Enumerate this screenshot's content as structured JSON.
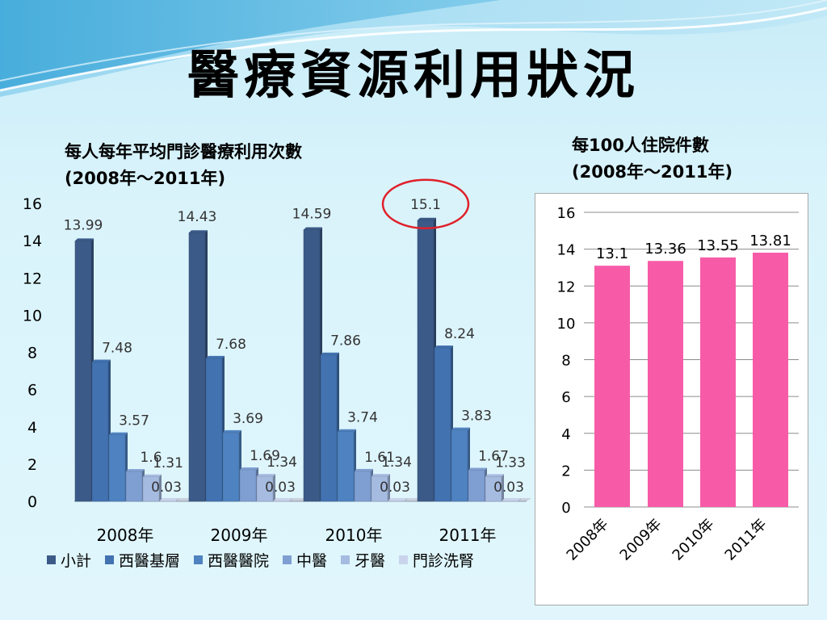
{
  "title": "醫療資源利用狀況",
  "left_chart": {
    "subtitle_line1": "每人每年平均門診醫療利用次數",
    "subtitle_line2": "(2008年～2011年)"
  },
  "right_chart": {
    "subtitle_line1": "每100人住院件數",
    "subtitle_line2": "(2008年～2011年)"
  },
  "colors": {
    "series": [
      "#3c5a88",
      "#4272b0",
      "#4f82c0",
      "#7f9fd2",
      "#a6bbe0",
      "#c9d4ec"
    ],
    "highlight_circle": "#e0202a",
    "bar_pink": "#f75ba8"
  },
  "chart_data": [
    {
      "type": "bar",
      "categories": [
        "2008年",
        "2009年",
        "2010年",
        "2011年"
      ],
      "series": [
        {
          "name": "小計",
          "values": [
            13.99,
            14.43,
            14.59,
            15.1
          ]
        },
        {
          "name": "西醫基層",
          "values": [
            7.48,
            7.68,
            7.86,
            8.24
          ]
        },
        {
          "name": "西醫醫院",
          "values": [
            3.57,
            3.69,
            3.74,
            3.83
          ]
        },
        {
          "name": "中醫",
          "values": [
            1.6,
            1.69,
            1.61,
            1.67
          ]
        },
        {
          "name": "牙醫",
          "values": [
            1.31,
            1.34,
            1.34,
            1.33
          ]
        },
        {
          "name": "門診洗腎",
          "values": [
            0.03,
            0.03,
            0.03,
            0.03
          ]
        }
      ],
      "ylim": [
        0,
        16
      ],
      "yticks": [
        0,
        2,
        4,
        6,
        8,
        10,
        12,
        14,
        16
      ],
      "legend": "bottom",
      "grid": false,
      "data_labels": true,
      "annotation": "red circle around 15.1"
    },
    {
      "type": "bar",
      "categories": [
        "2008年",
        "2009年",
        "2010年",
        "2011年"
      ],
      "values": [
        13.1,
        13.36,
        13.55,
        13.81
      ],
      "ylim": [
        0,
        16
      ],
      "yticks": [
        0,
        2,
        4,
        6,
        8,
        10,
        12,
        14,
        16
      ],
      "grid": true,
      "data_labels": true,
      "x_tick_rotation": "rotated"
    }
  ]
}
